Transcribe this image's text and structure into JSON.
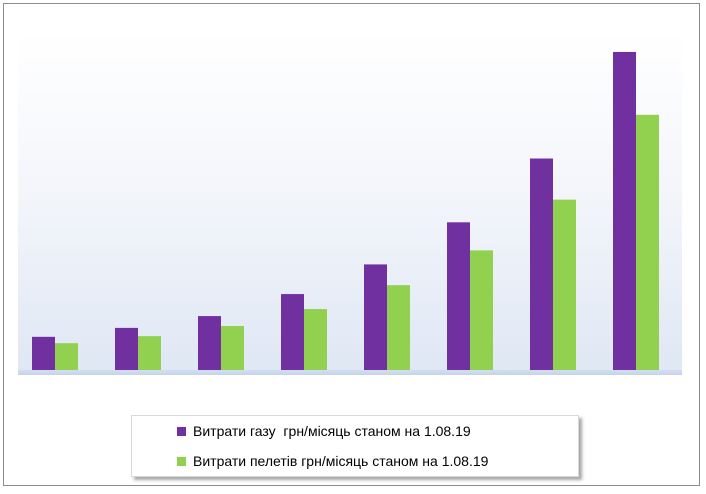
{
  "chart_data": {
    "type": "bar",
    "title": "",
    "xlabel": "",
    "ylabel": "",
    "grid": false,
    "legend_position": "bottom",
    "categories": [
      "",
      "",
      "",
      "",
      "",
      "",
      "",
      ""
    ],
    "ylim": [
      0,
      100
    ],
    "series": [
      {
        "name": "Витрати газу  грн/місяць станом на 1.08.19",
        "color": "#7030a0",
        "values": [
          10.4,
          13.2,
          16.9,
          23.8,
          33.1,
          46.3,
          66.3,
          99.7
        ]
      },
      {
        "name": "Витрати пелетів грн/місяць станом на 1.08.19",
        "color": "#92d050",
        "values": [
          8.4,
          10.6,
          13.8,
          19.1,
          26.6,
          37.5,
          53.4,
          80.0
        ]
      }
    ]
  }
}
